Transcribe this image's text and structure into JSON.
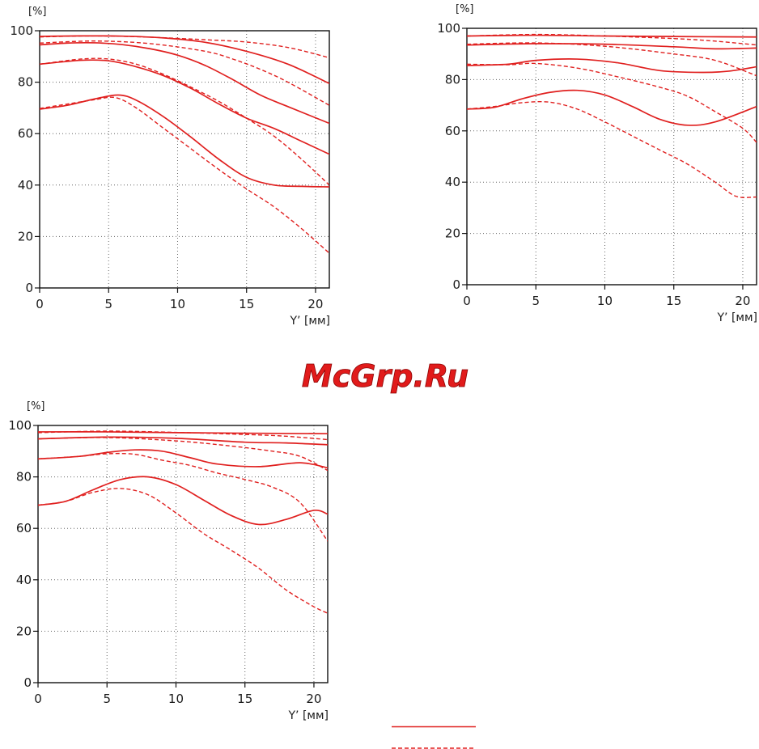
{
  "watermark": "McGrp.Ru",
  "line_color": "#e0201f",
  "chart_data": [
    {
      "type": "line",
      "ylabel": "[%]",
      "xlabel": "Y’ [мм]",
      "xlim": [
        0,
        21
      ],
      "ylim": [
        0,
        100
      ],
      "xticks": [
        0,
        5,
        10,
        15,
        20
      ],
      "yticks": [
        0,
        20,
        40,
        60,
        80,
        100
      ],
      "grid": true,
      "series": [
        {
          "style": "solid",
          "points": [
            [
              0,
              97.8
            ],
            [
              3,
              98.0
            ],
            [
              6,
              97.9
            ],
            [
              9,
              97.2
            ],
            [
              12,
              95.5
            ],
            [
              15,
              92.0
            ],
            [
              18,
              87.0
            ],
            [
              21,
              79.5
            ]
          ]
        },
        {
          "style": "dashed",
          "points": [
            [
              0,
              97.6
            ],
            [
              4,
              98.0
            ],
            [
              8,
              97.5
            ],
            [
              12,
              96.5
            ],
            [
              15,
              95.6
            ],
            [
              18,
              93.5
            ],
            [
              21,
              89.5
            ]
          ]
        },
        {
          "style": "solid",
          "points": [
            [
              0,
              94.5
            ],
            [
              2,
              95.2
            ],
            [
              4,
              95.3
            ],
            [
              6,
              94.6
            ],
            [
              8,
              93.0
            ],
            [
              10,
              90.5
            ],
            [
              12,
              86.5
            ],
            [
              14,
              81.0
            ],
            [
              16,
              75.0
            ],
            [
              18,
              70.5
            ],
            [
              21,
              64.0
            ]
          ]
        },
        {
          "style": "dashed",
          "points": [
            [
              0,
              95.2
            ],
            [
              4,
              96.0
            ],
            [
              8,
              95.0
            ],
            [
              12,
              92.0
            ],
            [
              14,
              89.0
            ],
            [
              16,
              85.0
            ],
            [
              18,
              80.0
            ],
            [
              21,
              71.0
            ]
          ]
        },
        {
          "style": "solid",
          "points": [
            [
              0,
              87.0
            ],
            [
              3,
              88.5
            ],
            [
              5,
              88.3
            ],
            [
              7,
              86.0
            ],
            [
              9,
              82.5
            ],
            [
              11,
              77.5
            ],
            [
              13,
              71.5
            ],
            [
              15,
              66.0
            ],
            [
              17,
              62.0
            ],
            [
              19,
              57.0
            ],
            [
              21,
              52.0
            ]
          ]
        },
        {
          "style": "dashed",
          "points": [
            [
              0,
              87.0
            ],
            [
              3,
              89.0
            ],
            [
              5,
              89.0
            ],
            [
              7,
              87.0
            ],
            [
              9,
              83.0
            ],
            [
              11,
              78.0
            ],
            [
              13,
              72.5
            ],
            [
              15,
              66.0
            ],
            [
              17,
              59.0
            ],
            [
              19,
              50.0
            ],
            [
              21,
              40.0
            ]
          ]
        },
        {
          "style": "solid",
          "points": [
            [
              0,
              69.5
            ],
            [
              2,
              71.0
            ],
            [
              4,
              73.5
            ],
            [
              5.7,
              75.0
            ],
            [
              7,
              73.0
            ],
            [
              9,
              66.5
            ],
            [
              11,
              58.5
            ],
            [
              13,
              50.0
            ],
            [
              15,
              43.0
            ],
            [
              17,
              40.0
            ],
            [
              19,
              39.5
            ],
            [
              21,
              39.3
            ]
          ]
        },
        {
          "style": "dashed",
          "points": [
            [
              0,
              69.8
            ],
            [
              2,
              71.5
            ],
            [
              4,
              73.2
            ],
            [
              5.5,
              74.0
            ],
            [
              7,
              70.0
            ],
            [
              9,
              62.0
            ],
            [
              11,
              54.0
            ],
            [
              13,
              46.0
            ],
            [
              15,
              38.5
            ],
            [
              17,
              31.5
            ],
            [
              19,
              23.0
            ],
            [
              21,
              13.5
            ]
          ]
        }
      ]
    },
    {
      "type": "line",
      "ylabel": "[%]",
      "xlabel": "Y’ [мм]",
      "xlim": [
        0,
        21
      ],
      "ylim": [
        0,
        100
      ],
      "xticks": [
        0,
        5,
        10,
        15,
        20
      ],
      "yticks": [
        0,
        20,
        40,
        60,
        80,
        100
      ],
      "grid": true,
      "series": [
        {
          "style": "solid",
          "points": [
            [
              0,
              97.0
            ],
            [
              5,
              97.3
            ],
            [
              10,
              97.0
            ],
            [
              15,
              96.8
            ],
            [
              21,
              96.6
            ]
          ]
        },
        {
          "style": "dashed",
          "points": [
            [
              0,
              97.0
            ],
            [
              5,
              97.6
            ],
            [
              10,
              97.0
            ],
            [
              15,
              96.0
            ],
            [
              18,
              95.0
            ],
            [
              21,
              93.5
            ]
          ]
        },
        {
          "style": "solid",
          "points": [
            [
              0,
              93.5
            ],
            [
              5,
              94.0
            ],
            [
              10,
              93.8
            ],
            [
              15,
              92.8
            ],
            [
              18,
              92.0
            ],
            [
              21,
              92.3
            ]
          ]
        },
        {
          "style": "dashed",
          "points": [
            [
              0,
              93.8
            ],
            [
              5,
              94.3
            ],
            [
              10,
              93.0
            ],
            [
              15,
              90.0
            ],
            [
              18,
              87.5
            ],
            [
              21,
              81.5
            ]
          ]
        },
        {
          "style": "solid",
          "points": [
            [
              0,
              85.5
            ],
            [
              3,
              86.0
            ],
            [
              5,
              87.5
            ],
            [
              8,
              88.0
            ],
            [
              11,
              86.5
            ],
            [
              14,
              83.5
            ],
            [
              17,
              82.8
            ],
            [
              19,
              83.3
            ],
            [
              21,
              85.0
            ]
          ]
        },
        {
          "style": "dashed",
          "points": [
            [
              0,
              86.0
            ],
            [
              3,
              85.8
            ],
            [
              5,
              86.3
            ],
            [
              8,
              84.5
            ],
            [
              11,
              81.0
            ],
            [
              14,
              77.0
            ],
            [
              16,
              73.5
            ],
            [
              18,
              67.5
            ],
            [
              20,
              61.0
            ],
            [
              21,
              55.5
            ]
          ]
        },
        {
          "style": "solid",
          "points": [
            [
              0,
              68.5
            ],
            [
              2,
              69.2
            ],
            [
              4,
              72.5
            ],
            [
              6,
              75.0
            ],
            [
              8,
              75.8
            ],
            [
              10,
              74.0
            ],
            [
              12,
              69.5
            ],
            [
              14,
              64.5
            ],
            [
              16,
              62.2
            ],
            [
              18,
              63.5
            ],
            [
              21,
              69.5
            ]
          ]
        },
        {
          "style": "dashed",
          "points": [
            [
              0,
              68.5
            ],
            [
              2,
              69.5
            ],
            [
              4,
              71.0
            ],
            [
              6,
              71.2
            ],
            [
              8,
              68.5
            ],
            [
              10,
              63.5
            ],
            [
              12,
              58.0
            ],
            [
              14,
              52.5
            ],
            [
              16,
              47.0
            ],
            [
              18,
              40.0
            ],
            [
              19.5,
              34.5
            ],
            [
              21,
              34.2
            ]
          ]
        }
      ]
    },
    {
      "type": "line",
      "ylabel": "[%]",
      "xlabel": "Y’ [мм]",
      "xlim": [
        0,
        21
      ],
      "ylim": [
        0,
        100
      ],
      "xticks": [
        0,
        5,
        10,
        15,
        20
      ],
      "yticks": [
        0,
        20,
        40,
        60,
        80,
        100
      ],
      "grid": true,
      "series": [
        {
          "style": "solid",
          "points": [
            [
              0,
              97.5
            ],
            [
              5,
              97.5
            ],
            [
              10,
              97.2
            ],
            [
              15,
              97.0
            ],
            [
              21,
              96.8
            ]
          ]
        },
        {
          "style": "dashed",
          "points": [
            [
              0,
              97.2
            ],
            [
              5,
              97.8
            ],
            [
              10,
              97.3
            ],
            [
              15,
              96.5
            ],
            [
              18,
              95.8
            ],
            [
              21,
              94.5
            ]
          ]
        },
        {
          "style": "solid",
          "points": [
            [
              0,
              94.8
            ],
            [
              5,
              95.5
            ],
            [
              10,
              95.0
            ],
            [
              15,
              93.5
            ],
            [
              18,
              93.2
            ],
            [
              21,
              92.5
            ]
          ]
        },
        {
          "style": "dashed",
          "points": [
            [
              0,
              94.8
            ],
            [
              5,
              95.3
            ],
            [
              10,
              94.0
            ],
            [
              14,
              92.0
            ],
            [
              17,
              90.0
            ],
            [
              19,
              88.0
            ],
            [
              21,
              82.5
            ]
          ]
        },
        {
          "style": "solid",
          "points": [
            [
              0,
              87.0
            ],
            [
              3,
              88.0
            ],
            [
              5,
              89.5
            ],
            [
              7,
              90.5
            ],
            [
              9,
              90.0
            ],
            [
              11,
              87.5
            ],
            [
              13,
              85.0
            ],
            [
              16,
              84.0
            ],
            [
              19,
              85.5
            ],
            [
              21,
              83.5
            ]
          ]
        },
        {
          "style": "dashed",
          "points": [
            [
              0,
              87.0
            ],
            [
              3,
              88.0
            ],
            [
              5,
              89.0
            ],
            [
              7,
              88.8
            ],
            [
              9,
              86.5
            ],
            [
              11,
              84.5
            ],
            [
              13,
              81.5
            ],
            [
              15,
              79.0
            ],
            [
              17,
              76.0
            ],
            [
              19,
              70.0
            ],
            [
              21,
              55.0
            ]
          ]
        },
        {
          "style": "solid",
          "points": [
            [
              0,
              69.0
            ],
            [
              2,
              70.5
            ],
            [
              4,
              75.0
            ],
            [
              6,
              79.0
            ],
            [
              8,
              80.0
            ],
            [
              10,
              77.0
            ],
            [
              12,
              71.0
            ],
            [
              14,
              65.0
            ],
            [
              16,
              61.5
            ],
            [
              18,
              63.5
            ],
            [
              20,
              67.0
            ],
            [
              21,
              65.5
            ]
          ]
        },
        {
          "style": "dashed",
          "points": [
            [
              0,
              69.0
            ],
            [
              2,
              70.5
            ],
            [
              4,
              74.0
            ],
            [
              6,
              75.5
            ],
            [
              8,
              73.0
            ],
            [
              10,
              66.0
            ],
            [
              12,
              58.0
            ],
            [
              14,
              51.5
            ],
            [
              16,
              44.5
            ],
            [
              18,
              36.0
            ],
            [
              20,
              29.5
            ],
            [
              21,
              27.0
            ]
          ]
        }
      ]
    }
  ]
}
